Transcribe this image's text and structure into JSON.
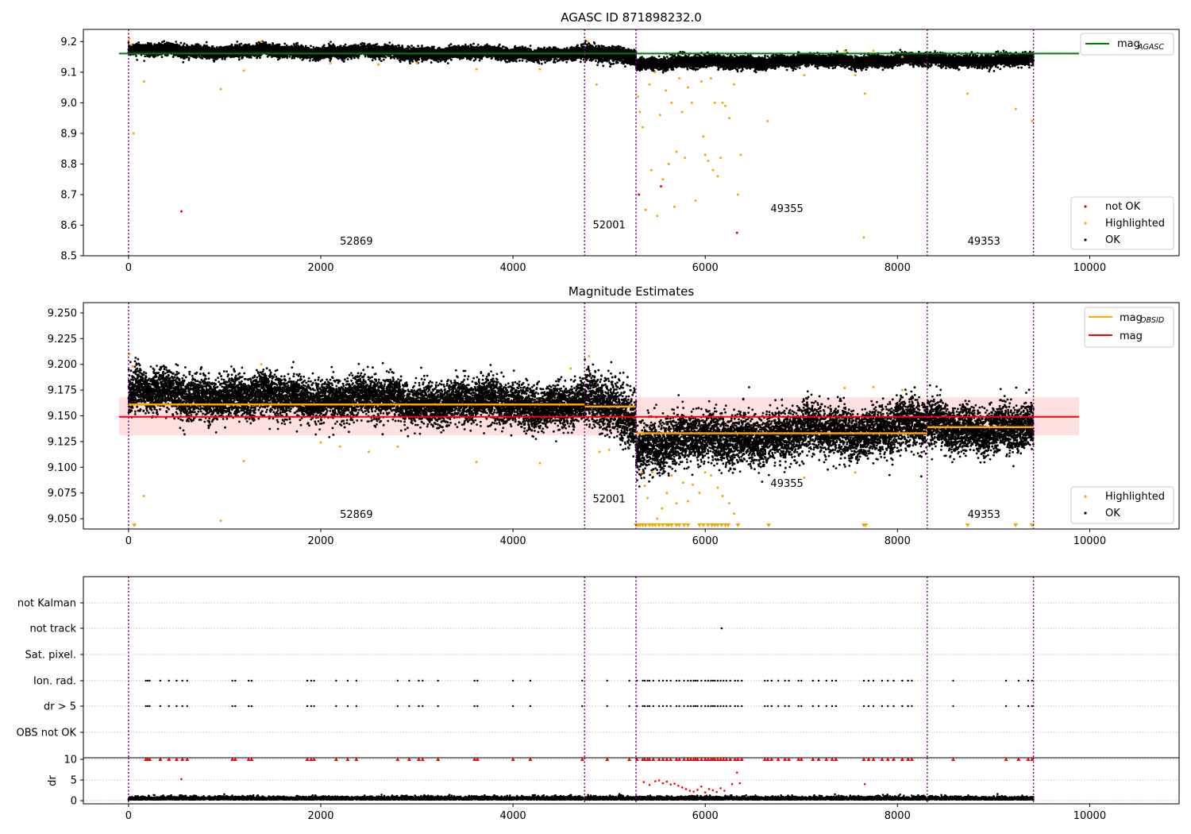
{
  "colors": {
    "ok": "#000000",
    "highlighted": "#ffa500",
    "not_ok": "#ff0000",
    "mag_agasc": "#008000",
    "mag_obsid": "#ffa500",
    "mag": "#ff0000",
    "boundary": "#800080",
    "band": "#ffcccc",
    "grid": "#b0b0b0"
  },
  "chart_data": [
    {
      "type": "scatter",
      "title": "AGASC ID 871898232.0",
      "xlim": [
        -470,
        10930
      ],
      "ylim": [
        8.5,
        9.24
      ],
      "xticks": [
        "0",
        "2000",
        "4000",
        "6000",
        "8000",
        "10000"
      ],
      "yticks": [
        "8.5",
        "8.6",
        "8.7",
        "8.8",
        "8.9",
        "9.0",
        "9.1",
        "9.2"
      ],
      "grid": false,
      "legend_top": {
        "placement": "upper right",
        "entries": [
          "mag",
          "AGASC"
        ]
      },
      "legend_bottom": {
        "placement": "lower right",
        "entries": [
          "not OK",
          "Highlighted",
          "OK"
        ]
      },
      "mag_agasc": 9.161,
      "mag_agasc_x": [
        -100,
        9890
      ],
      "obsid_boundaries": [
        0,
        4745,
        5280,
        8310,
        9415
      ],
      "obsid_labels": [
        {
          "text": "52869",
          "x": 2370,
          "y": 8.537
        },
        {
          "text": "52001",
          "x": 5000,
          "y": 8.59
        },
        {
          "text": "49355",
          "x": 6850,
          "y": 8.643
        },
        {
          "text": "49353",
          "x": 8900,
          "y": 8.537
        }
      ],
      "ok_segments": [
        {
          "x": [
            0,
            4745
          ],
          "mean_start": 9.172,
          "mean_end": 9.16,
          "sigma": 0.009
        },
        {
          "x": [
            4745,
            5280
          ],
          "mean_start": 9.16,
          "mean_end": 9.155,
          "sigma": 0.012
        },
        {
          "x": [
            5280,
            8310
          ],
          "mean_start": 9.13,
          "mean_end": 9.14,
          "sigma": 0.009
        },
        {
          "x": [
            8310,
            9415
          ],
          "mean_start": 9.14,
          "mean_end": 9.14,
          "sigma": 0.009
        }
      ],
      "highlighted_points": [
        [
          10,
          9.21
        ],
        [
          30,
          9.19
        ],
        [
          50,
          8.9
        ],
        [
          160,
          9.07
        ],
        [
          960,
          9.045
        ],
        [
          1200,
          9.105
        ],
        [
          1380,
          9.2
        ],
        [
          2100,
          9.13
        ],
        [
          2600,
          9.125
        ],
        [
          3000,
          9.13
        ],
        [
          3620,
          9.11
        ],
        [
          4280,
          9.11
        ],
        [
          4780,
          9.2
        ],
        [
          4870,
          9.06
        ],
        [
          5300,
          9.02
        ],
        [
          5320,
          8.97
        ],
        [
          5350,
          8.92
        ],
        [
          5380,
          8.65
        ],
        [
          5420,
          9.06
        ],
        [
          5440,
          8.78
        ],
        [
          5480,
          9.1
        ],
        [
          5500,
          8.63
        ],
        [
          5530,
          8.96
        ],
        [
          5560,
          8.75
        ],
        [
          5590,
          9.04
        ],
        [
          5620,
          8.8
        ],
        [
          5650,
          9.0
        ],
        [
          5680,
          8.66
        ],
        [
          5700,
          8.84
        ],
        [
          5730,
          9.08
        ],
        [
          5760,
          8.97
        ],
        [
          5790,
          8.82
        ],
        [
          5820,
          9.05
        ],
        [
          5860,
          9.0
        ],
        [
          5900,
          8.68
        ],
        [
          5960,
          9.07
        ],
        [
          5980,
          8.89
        ],
        [
          6000,
          8.83
        ],
        [
          6030,
          8.81
        ],
        [
          6060,
          9.08
        ],
        [
          6080,
          8.78
        ],
        [
          6100,
          9.0
        ],
        [
          6130,
          8.76
        ],
        [
          6160,
          8.82
        ],
        [
          6180,
          9.0
        ],
        [
          6210,
          8.99
        ],
        [
          6250,
          8.95
        ],
        [
          6300,
          9.06
        ],
        [
          6340,
          8.7
        ],
        [
          6370,
          8.83
        ],
        [
          6650,
          8.94
        ],
        [
          7030,
          9.09
        ],
        [
          7450,
          9.17
        ],
        [
          7560,
          9.09
        ],
        [
          7650,
          8.56
        ],
        [
          7660,
          9.03
        ],
        [
          7750,
          9.17
        ],
        [
          8050,
          9.15
        ],
        [
          8730,
          9.03
        ],
        [
          9230,
          8.98
        ],
        [
          9400,
          8.94
        ]
      ],
      "not_ok_points": [
        [
          550,
          8.645
        ],
        [
          5310,
          8.7
        ],
        [
          5540,
          8.727
        ],
        [
          6330,
          8.575
        ]
      ]
    },
    {
      "type": "scatter",
      "title": "Magnitude Estimates",
      "xlim": [
        -470,
        10930
      ],
      "ylim": [
        9.04,
        9.26
      ],
      "xticks": [
        "0",
        "2000",
        "4000",
        "6000",
        "8000",
        "10000"
      ],
      "yticks": [
        "9.050",
        "9.075",
        "9.100",
        "9.125",
        "9.150",
        "9.175",
        "9.200",
        "9.225",
        "9.250"
      ],
      "grid": false,
      "legend_top": {
        "placement": "upper right",
        "entries": [
          "mag",
          "OBSID",
          "mag"
        ]
      },
      "legend_bottom": {
        "placement": "lower right",
        "entries": [
          "Highlighted",
          "OK"
        ]
      },
      "mag": 9.149,
      "mag_band": [
        9.131,
        9.168
      ],
      "mag_x": [
        -100,
        9890
      ],
      "mag_obsid": [
        {
          "x": [
            0,
            4745
          ],
          "y": 9.161
        },
        {
          "x": [
            4745,
            5280
          ],
          "y": 9.159
        },
        {
          "x": [
            5280,
            8310
          ],
          "y": 9.133
        },
        {
          "x": [
            8310,
            9415
          ],
          "y": 9.139
        }
      ],
      "obsid_boundaries": [
        0,
        4745,
        5280,
        8310,
        9415
      ],
      "obsid_labels": [
        {
          "text": "52869",
          "x": 2370,
          "y": 9.051
        },
        {
          "text": "52001",
          "x": 5000,
          "y": 9.066
        },
        {
          "text": "49355",
          "x": 6850,
          "y": 9.081
        },
        {
          "text": "49353",
          "x": 8900,
          "y": 9.051
        }
      ],
      "ok_segments": [
        {
          "x": [
            0,
            4745
          ],
          "mean_start": 9.172,
          "mean_end": 9.16,
          "sigma": 0.01
        },
        {
          "x": [
            4745,
            5280
          ],
          "mean_start": 9.165,
          "mean_end": 9.15,
          "sigma": 0.014
        },
        {
          "x": [
            5280,
            8310
          ],
          "mean_start": 9.122,
          "mean_end": 9.14,
          "sigma": 0.012
        },
        {
          "x": [
            8310,
            9415
          ],
          "mean_start": 9.14,
          "mean_end": 9.135,
          "sigma": 0.011
        }
      ],
      "highlighted_points": [
        [
          10,
          9.21
        ],
        [
          40,
          9.198
        ],
        [
          160,
          9.072
        ],
        [
          960,
          9.048
        ],
        [
          1200,
          9.106
        ],
        [
          1380,
          9.2
        ],
        [
          2000,
          9.124
        ],
        [
          2200,
          9.12
        ],
        [
          2500,
          9.115
        ],
        [
          2800,
          9.12
        ],
        [
          3620,
          9.105
        ],
        [
          4280,
          9.104
        ],
        [
          4600,
          9.196
        ],
        [
          4790,
          9.208
        ],
        [
          4900,
          9.115
        ],
        [
          5000,
          9.117
        ],
        [
          5340,
          9.095
        ],
        [
          5370,
          9.082
        ],
        [
          5400,
          9.07
        ],
        [
          5450,
          9.095
        ],
        [
          5500,
          9.05
        ],
        [
          5550,
          9.06
        ],
        [
          5600,
          9.075
        ],
        [
          5650,
          9.092
        ],
        [
          5700,
          9.065
        ],
        [
          5770,
          9.085
        ],
        [
          5820,
          9.067
        ],
        [
          5870,
          9.083
        ],
        [
          5940,
          9.075
        ],
        [
          6000,
          9.095
        ],
        [
          6060,
          9.092
        ],
        [
          6130,
          9.08
        ],
        [
          6180,
          9.072
        ],
        [
          6250,
          9.065
        ],
        [
          6300,
          9.055
        ],
        [
          7030,
          9.09
        ],
        [
          7450,
          9.177
        ],
        [
          7560,
          9.095
        ],
        [
          7750,
          9.178
        ],
        [
          8050,
          9.175
        ]
      ],
      "below_points": [
        60,
        5280,
        5300,
        5320,
        5350,
        5380,
        5420,
        5450,
        5480,
        5520,
        5560,
        5600,
        5620,
        5650,
        5700,
        5730,
        5780,
        5820,
        5940,
        5980,
        6030,
        6070,
        6100,
        6130,
        6170,
        6210,
        6240,
        6340,
        6660,
        7650,
        7670,
        8730,
        9230,
        9400
      ]
    },
    {
      "type": "scatter",
      "xlim": [
        -470,
        10930
      ],
      "xticks": [
        "0",
        "2000",
        "4000",
        "6000",
        "8000",
        "10000"
      ],
      "flag_rows": [
        "not Kalman",
        "not track",
        "Sat. pixel.",
        "Ion. rad.",
        "dr > 5",
        "OBS not OK"
      ],
      "dr_ylim": [
        0,
        10
      ],
      "dr_ylabel": "dr",
      "dr_yticks": [
        "0",
        "5",
        "10"
      ],
      "grid": true,
      "obsid_boundaries": [
        0,
        4745,
        5280,
        8310,
        9415
      ],
      "not_track_points": [
        6170
      ],
      "flag_times": [
        180,
        200,
        220,
        330,
        420,
        500,
        560,
        610,
        1080,
        1110,
        1250,
        1280,
        1860,
        1900,
        1930,
        2160,
        2280,
        2370,
        2800,
        2920,
        3020,
        3060,
        3220,
        3600,
        3630,
        4000,
        4180,
        4720,
        4980,
        5210,
        5290,
        5350,
        5370,
        5400,
        5420,
        5460,
        5520,
        5560,
        5600,
        5640,
        5700,
        5730,
        5780,
        5820,
        5850,
        5880,
        5900,
        5920,
        5960,
        6000,
        6030,
        6060,
        6080,
        6100,
        6130,
        6160,
        6190,
        6220,
        6260,
        6310,
        6340,
        6380,
        6620,
        6650,
        6690,
        6760,
        6830,
        6870,
        6970,
        7000,
        7120,
        7180,
        7260,
        7320,
        7360,
        7650,
        7700,
        7750,
        7840,
        7900,
        7960,
        8050,
        8110,
        8150,
        8580,
        9130,
        9260,
        9360,
        9400
      ],
      "dr_high_points": [
        [
          550,
          5.2
        ],
        [
          5360,
          4.5
        ],
        [
          5420,
          3.8
        ],
        [
          5480,
          4.7
        ],
        [
          5520,
          4.9
        ],
        [
          5560,
          4.2
        ],
        [
          5600,
          4.6
        ],
        [
          5640,
          3.9
        ],
        [
          5680,
          4.1
        ],
        [
          5720,
          3.6
        ],
        [
          5760,
          3.2
        ],
        [
          5800,
          2.8
        ],
        [
          5840,
          2.4
        ],
        [
          5880,
          2.2
        ],
        [
          5920,
          2.6
        ],
        [
          5960,
          3.4
        ],
        [
          6000,
          2.0
        ],
        [
          6040,
          2.8
        ],
        [
          6080,
          2.5
        ],
        [
          6120,
          2.1
        ],
        [
          6160,
          3.0
        ],
        [
          6200,
          2.4
        ],
        [
          6280,
          4.0
        ],
        [
          6330,
          6.8
        ],
        [
          6360,
          4.2
        ],
        [
          7660,
          4.0
        ]
      ]
    }
  ]
}
